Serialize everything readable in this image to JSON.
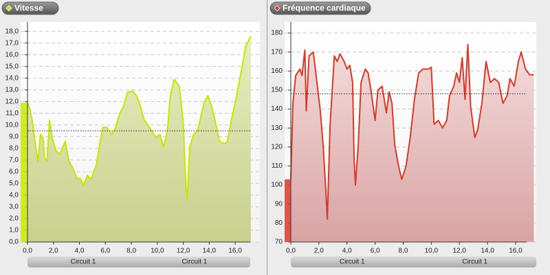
{
  "chart_data": [
    {
      "type": "area",
      "title": "Vitesse",
      "color": "#c8e600",
      "fill_top": "#e6edc0",
      "fill_bottom": "#c9d08e",
      "x": [
        0,
        0.2,
        0.4,
        0.6,
        0.8,
        1.0,
        1.2,
        1.3,
        1.5,
        1.7,
        1.9,
        2.2,
        2.5,
        2.9,
        3.2,
        3.5,
        3.8,
        4.1,
        4.3,
        4.6,
        4.9,
        5.3,
        5.6,
        5.8,
        6.1,
        6.5,
        6.8,
        7.1,
        7.4,
        7.7,
        8.1,
        8.4,
        8.7,
        9.0,
        9.4,
        9.9,
        10.2,
        10.5,
        10.8,
        11.0,
        11.3,
        11.7,
        12.0,
        12.2,
        12.3,
        12.5,
        12.8,
        13.1,
        13.6,
        13.9,
        14.2,
        14.5,
        14.8,
        15.2,
        15.4,
        15.7,
        16.0,
        16.3,
        16.6,
        16.8,
        17.2
      ],
      "values": [
        11.9,
        11.3,
        10.1,
        8.4,
        6.9,
        9.2,
        8.9,
        7.2,
        6.9,
        10.4,
        8.9,
        7.8,
        7.5,
        8.6,
        6.9,
        6.3,
        5.5,
        5.4,
        4.8,
        5.7,
        5.4,
        6.6,
        8.6,
        9.8,
        9.8,
        9.2,
        9.8,
        11.0,
        11.6,
        12.8,
        12.9,
        12.5,
        11.6,
        10.4,
        9.8,
        8.9,
        9.2,
        8.1,
        9.8,
        12.5,
        13.9,
        13.3,
        10.1,
        4.8,
        3.6,
        8.1,
        9.2,
        9.5,
        11.9,
        12.5,
        11.6,
        10.1,
        8.6,
        8.4,
        8.6,
        10.4,
        11.9,
        13.6,
        15.4,
        16.7,
        17.6
      ],
      "average": 9.5,
      "xlim": [
        -0.53,
        17.9
      ],
      "ylim": [
        0,
        18.8
      ],
      "xticks": [
        {
          "value": 0,
          "label": "0,0"
        },
        {
          "value": 2,
          "label": "2,0"
        },
        {
          "value": 4,
          "label": "4,0"
        },
        {
          "value": 6,
          "label": "6,0"
        },
        {
          "value": 8,
          "label": "8,0"
        },
        {
          "value": 10,
          "label": "10,0"
        },
        {
          "value": 12,
          "label": "12,0"
        },
        {
          "value": 14,
          "label": "14,0"
        },
        {
          "value": 16,
          "label": "16,0"
        }
      ],
      "yticks": [
        {
          "value": 0,
          "label": "0,0"
        },
        {
          "value": 1,
          "label": "1,0"
        },
        {
          "value": 2,
          "label": "2,0"
        },
        {
          "value": 3,
          "label": "3,0"
        },
        {
          "value": 4,
          "label": "4,0"
        },
        {
          "value": 5,
          "label": "5,0"
        },
        {
          "value": 6,
          "label": "6,0"
        },
        {
          "value": 7,
          "label": "7,0"
        },
        {
          "value": 8,
          "label": "8,0"
        },
        {
          "value": 9,
          "label": "9,0"
        },
        {
          "value": 10,
          "label": "10,0"
        },
        {
          "value": 11,
          "label": "11,0"
        },
        {
          "value": 12,
          "label": "12,0"
        },
        {
          "value": 13,
          "label": "13,0"
        },
        {
          "value": 14,
          "label": "14,0"
        },
        {
          "value": 15,
          "label": "15,0"
        },
        {
          "value": 16,
          "label": "16,0"
        },
        {
          "value": 17,
          "label": "17,0"
        },
        {
          "value": 18,
          "label": "18,0"
        }
      ],
      "grid": true,
      "sections": [
        "Circuit 1",
        "Circuit 1"
      ]
    },
    {
      "type": "area",
      "title": "Fréquence cardiaque",
      "color": "#d83a2a",
      "fill_top": "#f3dcdc",
      "fill_bottom": "#d9a3a3",
      "x": [
        0,
        0.15,
        0.35,
        0.65,
        0.8,
        1.0,
        1.1,
        1.3,
        1.6,
        1.8,
        2.1,
        2.3,
        2.5,
        2.6,
        2.8,
        3.1,
        3.3,
        3.5,
        3.8,
        4.0,
        4.2,
        4.4,
        4.5,
        4.6,
        4.8,
        5.0,
        5.3,
        5.5,
        5.7,
        6.0,
        6.2,
        6.5,
        6.8,
        7.0,
        7.2,
        7.4,
        7.7,
        7.9,
        8.2,
        8.5,
        8.8,
        9.1,
        9.4,
        9.8,
        10.0,
        10.2,
        10.5,
        10.8,
        11.1,
        11.3,
        11.6,
        11.8,
        12.0,
        12.2,
        12.4,
        12.6,
        12.8,
        13.1,
        13.3,
        13.6,
        13.9,
        14.2,
        14.5,
        14.8,
        15.1,
        15.4,
        15.6,
        15.9,
        16.2,
        16.4,
        16.7,
        17.0,
        17.3
      ],
      "values": [
        103,
        143,
        157.6,
        161,
        157.6,
        171,
        139,
        168,
        170,
        157.6,
        139,
        121,
        96,
        82,
        132,
        168,
        165,
        169,
        165,
        161,
        163,
        154,
        114,
        100,
        121,
        154,
        161,
        159,
        150,
        134,
        150,
        152,
        138,
        149,
        143,
        121,
        109,
        103,
        110,
        125,
        145,
        159,
        161,
        161,
        162,
        132,
        134,
        130,
        134,
        147,
        152,
        159,
        154,
        167,
        145,
        174,
        141,
        125,
        129,
        143,
        165,
        154,
        156,
        154,
        143,
        147,
        156,
        152,
        165,
        170,
        161,
        158,
        158
      ],
      "average": 148,
      "xlim": [
        -0.44,
        17.47
      ],
      "ylim": [
        70,
        185.8
      ],
      "xticks": [
        {
          "value": 0,
          "label": "0,0"
        },
        {
          "value": 2,
          "label": "2,0"
        },
        {
          "value": 4,
          "label": "4,0"
        },
        {
          "value": 6,
          "label": "6,0"
        },
        {
          "value": 8,
          "label": "8,0"
        },
        {
          "value": 10,
          "label": "10,0"
        },
        {
          "value": 12,
          "label": "12,0"
        },
        {
          "value": 14,
          "label": "14,0"
        },
        {
          "value": 16,
          "label": "16,0"
        }
      ],
      "yticks": [
        70,
        80,
        90,
        100,
        110,
        120,
        130,
        140,
        150,
        160,
        170,
        180
      ],
      "grid": true,
      "sections": [
        "Circuit 1",
        "Circuit 1"
      ]
    }
  ]
}
